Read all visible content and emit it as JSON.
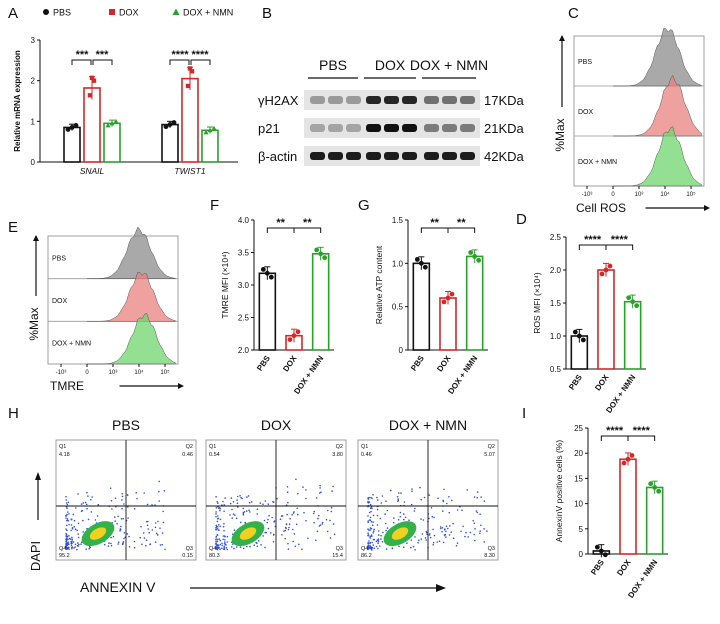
{
  "colors": {
    "pbs": "#111111",
    "dox": "#d62728",
    "nmn": "#2ca02c",
    "hist_gray": "#8c8c8c",
    "hist_red": "#e8827e",
    "hist_green": "#6fd66f"
  },
  "conditions": [
    "PBS",
    "DOX",
    "DOX + NMN"
  ],
  "panelA": {
    "letter": "A",
    "ylabel": "Relative mRNA expression",
    "legend": [
      "PBS",
      "DOX",
      "DOX + NMN"
    ],
    "chart_data": {
      "type": "bar",
      "title": "",
      "xlabel": "",
      "ylabel": "Relative mRNA expression",
      "ylim": [
        0,
        3
      ],
      "categories": [
        "SNAIL",
        "TWIST1"
      ],
      "series": [
        {
          "name": "PBS",
          "values": [
            0.85,
            0.92
          ]
        },
        {
          "name": "DOX",
          "values": [
            1.82,
            2.05
          ]
        },
        {
          "name": "DOX + NMN",
          "values": [
            0.95,
            0.78
          ]
        }
      ],
      "yticks": [
        "0",
        "1",
        "2",
        "3"
      ],
      "significance": [
        "***",
        "***",
        "****",
        "****"
      ]
    }
  },
  "panelB": {
    "letter": "B",
    "lanes": [
      "PBS",
      "DOX",
      "DOX + NMN"
    ],
    "bands": [
      {
        "name": "γH2AX",
        "size": "17KDa"
      },
      {
        "name": "p21",
        "size": "21KDa"
      },
      {
        "name": "β-actin",
        "size": "42KDa"
      }
    ]
  },
  "panelC": {
    "letter": "C",
    "ylabel": "%Max",
    "xlabel": "Cell ROS",
    "rows": [
      "PBS",
      "DOX",
      "DOX + NMN"
    ],
    "ticks": [
      "-10³",
      "0",
      "10³",
      "10⁴",
      "10⁵"
    ]
  },
  "panelD": {
    "letter": "D",
    "chart_data": {
      "type": "bar",
      "title": "",
      "xlabel": "",
      "ylabel": "ROS MFI (×10⁴)",
      "ylim": [
        0.5,
        2.5
      ],
      "categories": [
        "PBS",
        "DOX",
        "DOX + NMN"
      ],
      "values": [
        1.0,
        2.0,
        1.52
      ],
      "yticks": [
        "0.5",
        "1.0",
        "1.5",
        "2.0",
        "2.5"
      ],
      "significance": [
        "****",
        "****"
      ]
    }
  },
  "panelE": {
    "letter": "E",
    "ylabel": "%Max",
    "xlabel": "TMRE",
    "rows": [
      "PBS",
      "DOX",
      "DOX + NMN"
    ],
    "ticks": [
      "-10³",
      "0",
      "10³",
      "10⁴",
      "10⁵"
    ]
  },
  "panelF": {
    "letter": "F",
    "chart_data": {
      "type": "bar",
      "title": "",
      "xlabel": "",
      "ylabel": "TMRE MFI (×10⁴)",
      "ylim": [
        2.0,
        4.0
      ],
      "categories": [
        "PBS",
        "DOX",
        "DOX + NMN"
      ],
      "values": [
        3.18,
        2.22,
        3.48
      ],
      "yticks": [
        "2.0",
        "2.5",
        "3.0",
        "3.5",
        "4.0"
      ],
      "significance": [
        "**",
        "**"
      ]
    }
  },
  "panelG": {
    "letter": "G",
    "chart_data": {
      "type": "bar",
      "title": "",
      "xlabel": "",
      "ylabel": "Relative ATP content",
      "ylim": [
        0,
        1.5
      ],
      "categories": [
        "PBS",
        "DOX",
        "DOX + NMN"
      ],
      "values": [
        1.0,
        0.6,
        1.08
      ],
      "yticks": [
        "0",
        "0.5",
        "1.0",
        "1.5"
      ],
      "significance": [
        "**",
        "**"
      ]
    }
  },
  "panelH": {
    "letter": "H",
    "ylabel": "DAPI",
    "xlabel": "ANNEXIN V",
    "plots": [
      {
        "title": "PBS",
        "q1": "4.18",
        "q2": "0.46",
        "q3": "0.15",
        "q4": "95.2"
      },
      {
        "title": "DOX",
        "q1": "0.54",
        "q2": "3.80",
        "q3": "15.4",
        "q4": "80.3"
      },
      {
        "title": "DOX + NMN",
        "q1": "0.46",
        "q2": "5.07",
        "q3": "8.30",
        "q4": "86.2"
      }
    ],
    "quad_labels": [
      "Q1",
      "Q2",
      "Q3",
      "Q4"
    ]
  },
  "panelI": {
    "letter": "I",
    "chart_data": {
      "type": "bar",
      "title": "",
      "xlabel": "",
      "ylabel": "AnnexinV positive cells (%)",
      "ylim": [
        0,
        25
      ],
      "categories": [
        "PBS",
        "DOX",
        "DOX + NMN"
      ],
      "values": [
        0.6,
        18.8,
        13.2
      ],
      "yticks": [
        "0",
        "5",
        "10",
        "15",
        "20",
        "25"
      ],
      "significance": [
        "****",
        "****"
      ]
    }
  }
}
